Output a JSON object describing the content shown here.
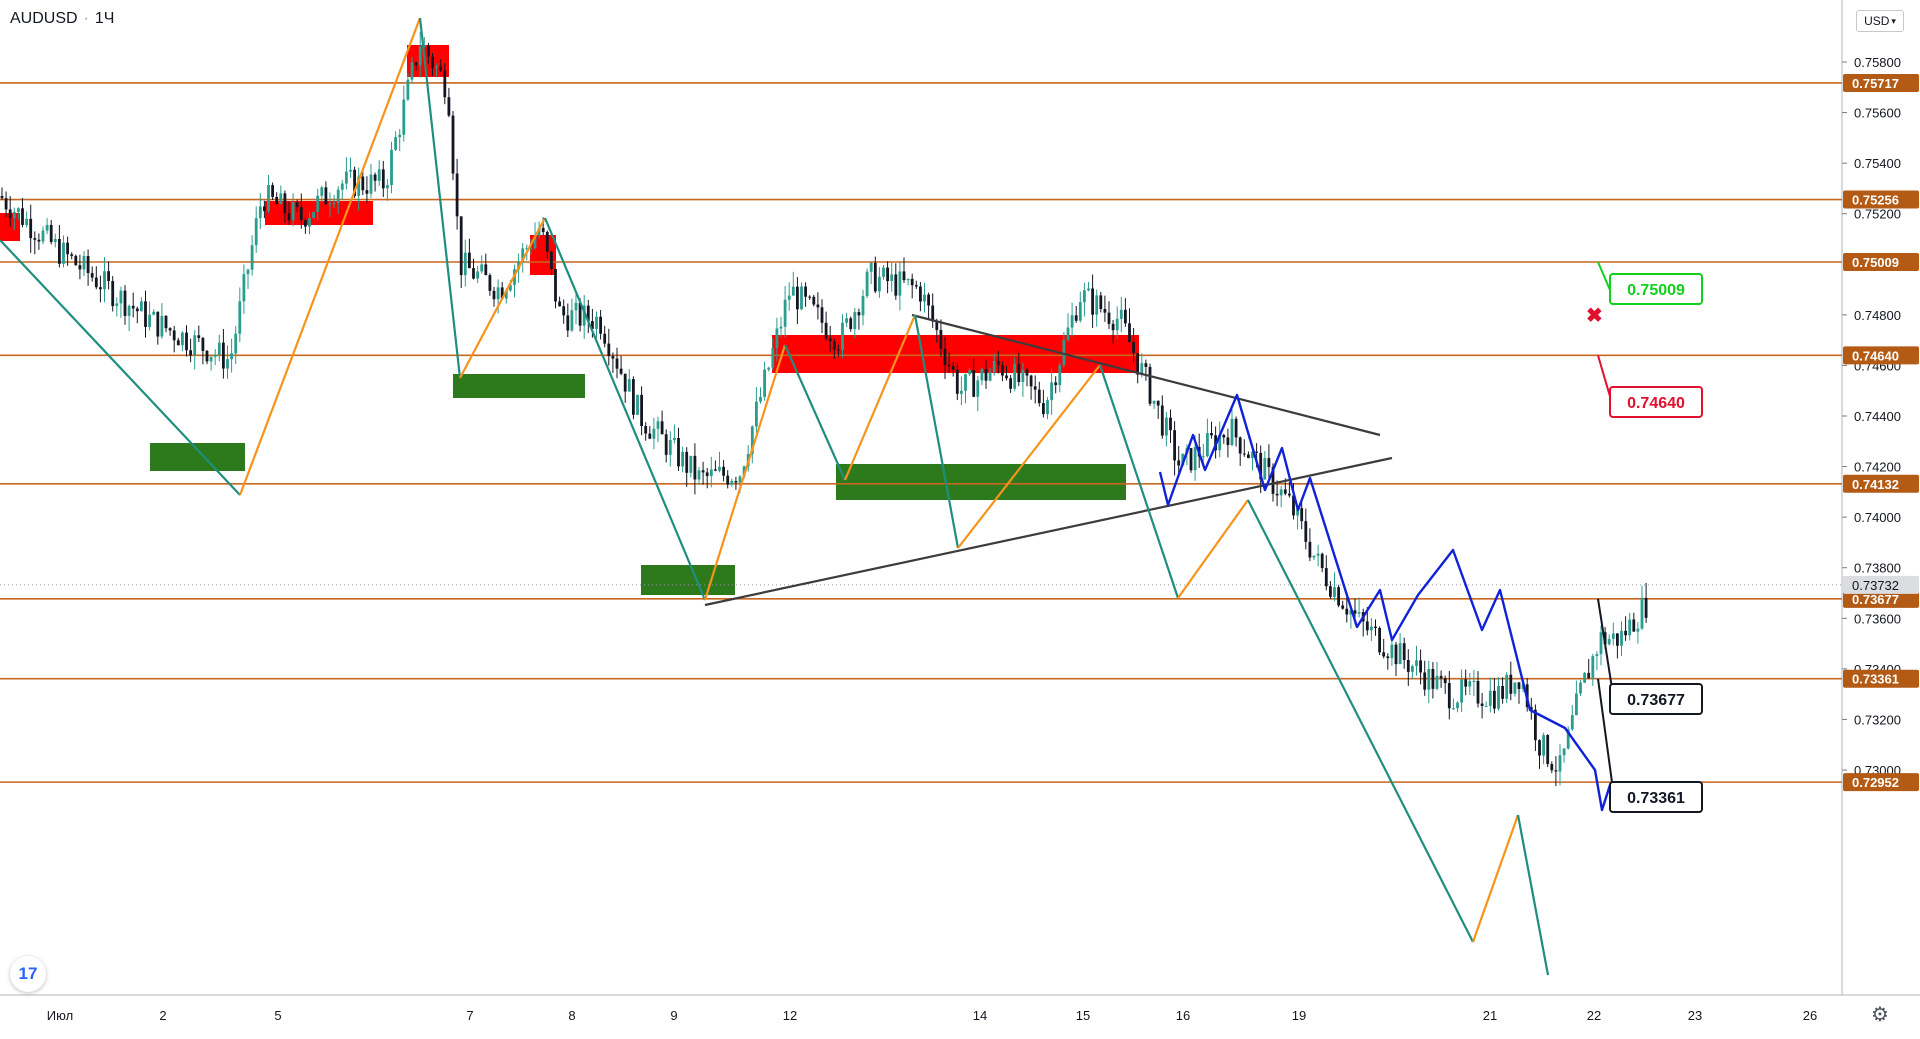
{
  "header": {
    "symbol": "AUDUSD",
    "interval": "1Ч",
    "currency": "USD"
  },
  "icons": {
    "logo": "tradingview-logo",
    "settings": "gear-icon",
    "marker": "cross-icon"
  },
  "colors": {
    "bull": "#2a9d8f",
    "bear": "#131722",
    "level": "#c8671f",
    "label_bg": "#b35a14",
    "resistance_zone": "#ff0000",
    "support_zone": "#2d7a1d",
    "zigzag_up": "#f7931a",
    "zigzag_down": "#1f8e7f",
    "projection": "#1022d8",
    "trendline": "#3c3c3c"
  },
  "chart_data": {
    "type": "candlestick",
    "x_ticks": [
      "Июл",
      "2",
      "5",
      "7",
      "8",
      "9",
      "12",
      "14",
      "15",
      "16",
      "19",
      "21",
      "22",
      "23",
      "26"
    ],
    "y_ticks": [
      "0.75800",
      "0.75600",
      "0.75400",
      "0.75200",
      "0.74800",
      "0.74600",
      "0.74400",
      "0.74200",
      "0.74000",
      "0.73800",
      "0.73600",
      "0.73400",
      "0.73200",
      "0.73000"
    ],
    "ylim": [
      0.7288,
      0.7598
    ],
    "levels": [
      {
        "value": 0.75717,
        "label": "0.75717"
      },
      {
        "value": 0.75256,
        "label": "0.75256"
      },
      {
        "value": 0.75009,
        "label": "0.75009"
      },
      {
        "value": 0.7464,
        "label": "0.74640"
      },
      {
        "value": 0.74132,
        "label": "0.74132"
      },
      {
        "value": 0.73677,
        "label": "0.73677"
      },
      {
        "value": 0.73361,
        "label": "0.73361"
      },
      {
        "value": 0.72952,
        "label": "0.72952"
      }
    ],
    "last_price": {
      "value": 0.73732,
      "label": "0.73732"
    },
    "callouts": [
      {
        "value": 0.75009,
        "label": "0.75009",
        "style": "green"
      },
      {
        "value": 0.7464,
        "label": "0.74640",
        "style": "red"
      },
      {
        "value": 0.73677,
        "label": "0.73677",
        "style": "black"
      },
      {
        "value": 0.73361,
        "label": "0.73361",
        "style": "black"
      }
    ]
  }
}
